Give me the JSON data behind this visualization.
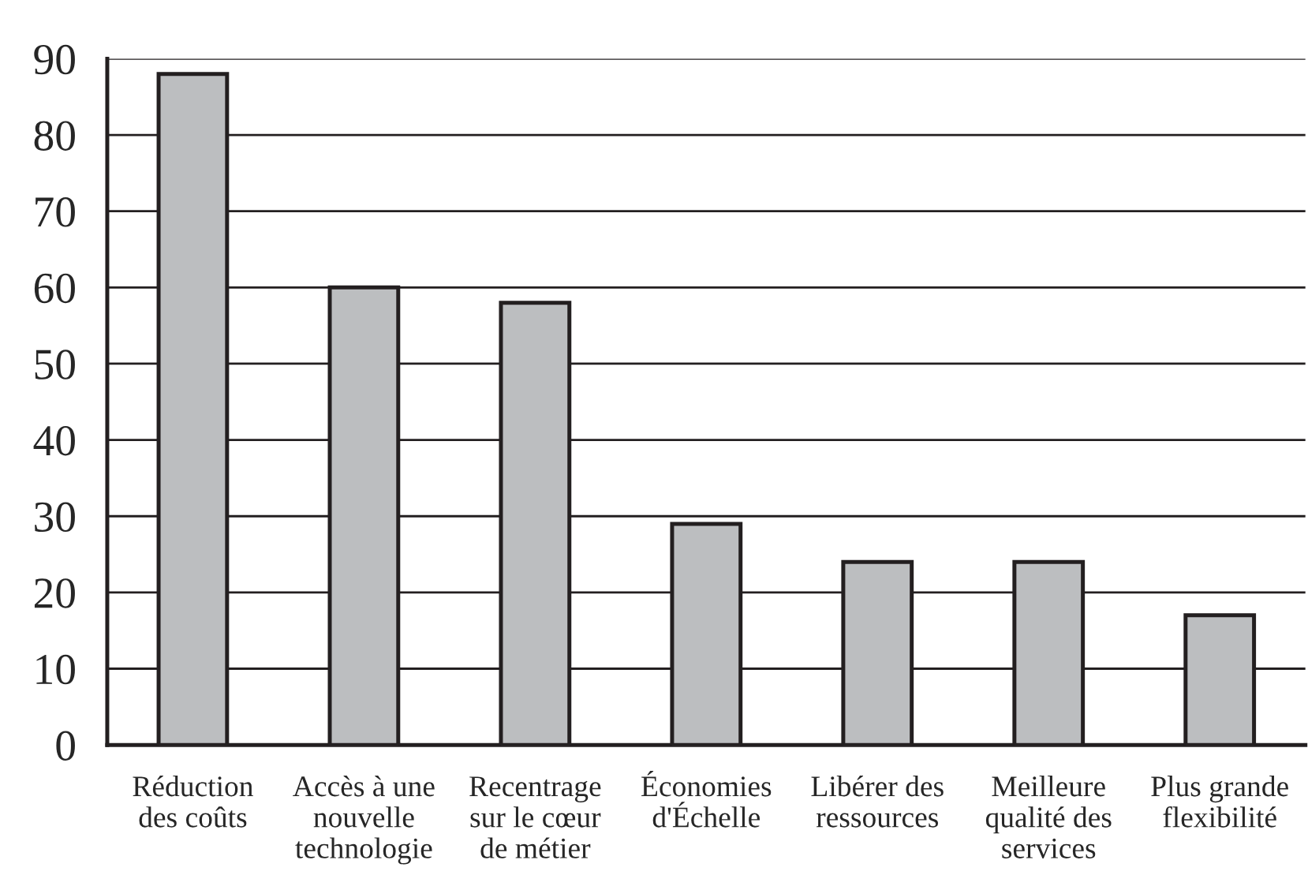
{
  "chart_data": {
    "type": "bar",
    "categories": [
      "Réduction\ndes coûts",
      "Accès à une\nnouvelle\ntechnologie",
      "Recentrage\nsur le cœur\nde métier",
      "Économies\nd'Échelle",
      "Libérer des\nressources",
      "Meilleure\nqualité des\nservices",
      "Plus grande\nflexibilité"
    ],
    "values": [
      88,
      60,
      58,
      29,
      24,
      24,
      17
    ],
    "color": "#bcbec0",
    "ylim": [
      0,
      90
    ],
    "yticks": [
      0,
      10,
      20,
      30,
      40,
      50,
      60,
      70,
      80,
      90
    ],
    "grid": "y"
  }
}
